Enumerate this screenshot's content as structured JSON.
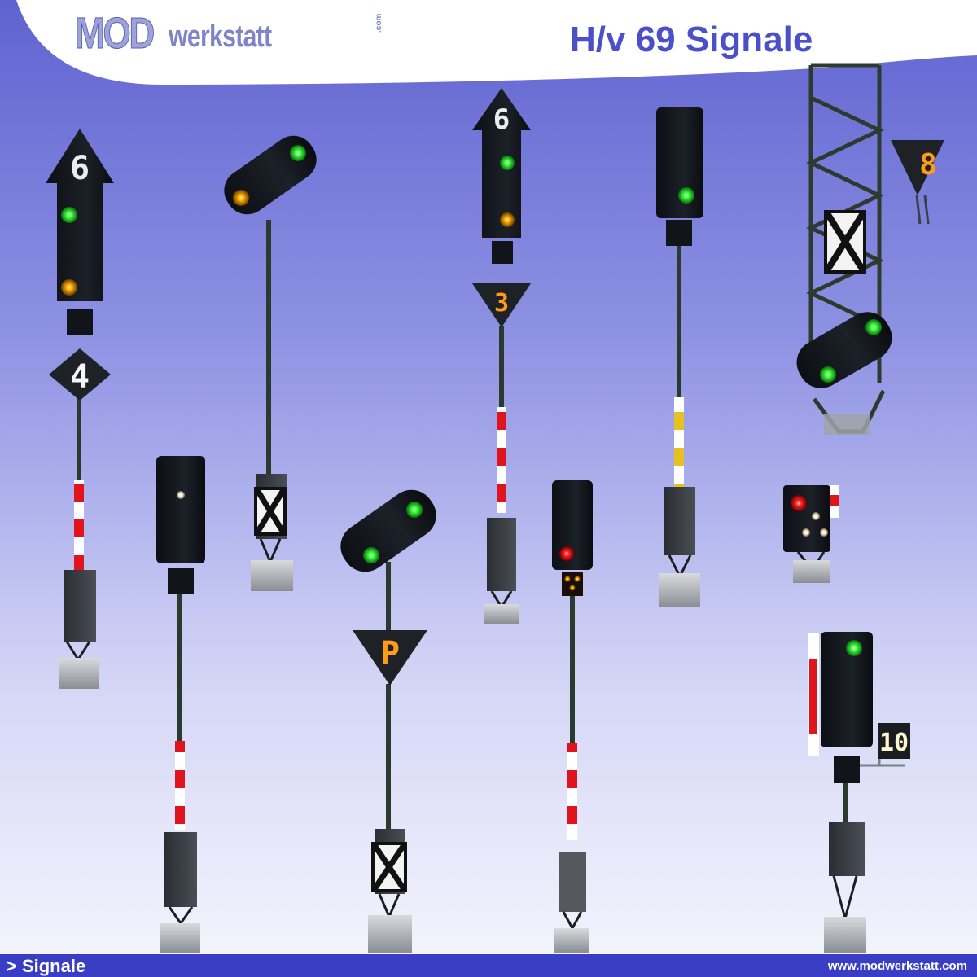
{
  "header": {
    "logo_primary": "MOD",
    "logo_secondary": "werkstatt",
    "logo_suffix": ".com",
    "title": "H/v 69 Signale"
  },
  "signals": [
    {
      "indicator": "6",
      "lamps": [
        "green",
        "yellow"
      ],
      "lower_indicator": "4"
    },
    {
      "lamps": [
        "yellow",
        "green"
      ]
    },
    {
      "indicator": "6",
      "lamps": [
        "green",
        "yellow"
      ],
      "lower_indicator": "3"
    },
    {
      "lamps": [
        "green"
      ]
    },
    {
      "indicator": "8",
      "lamps": [
        "green",
        "green"
      ]
    },
    {
      "lamps": [
        "white"
      ]
    },
    {
      "lamps": [
        "green",
        "green"
      ],
      "lower_indicator": "P"
    },
    {
      "lamps": [
        "red",
        "yellow",
        "yellow",
        "yellow"
      ]
    },
    {
      "lamps": [
        "red",
        "white",
        "white",
        "white"
      ]
    },
    {
      "lamps": [
        "green"
      ],
      "side_indicator": "10"
    }
  ],
  "colors": {
    "green": "#3cff3c",
    "yellow": "#ffb000",
    "red": "#ff2020",
    "white": "#fff6e6",
    "accent": "#4b50c8"
  },
  "footer": {
    "breadcrumb": "> Signale",
    "website": "www.modwerkstatt.com"
  }
}
